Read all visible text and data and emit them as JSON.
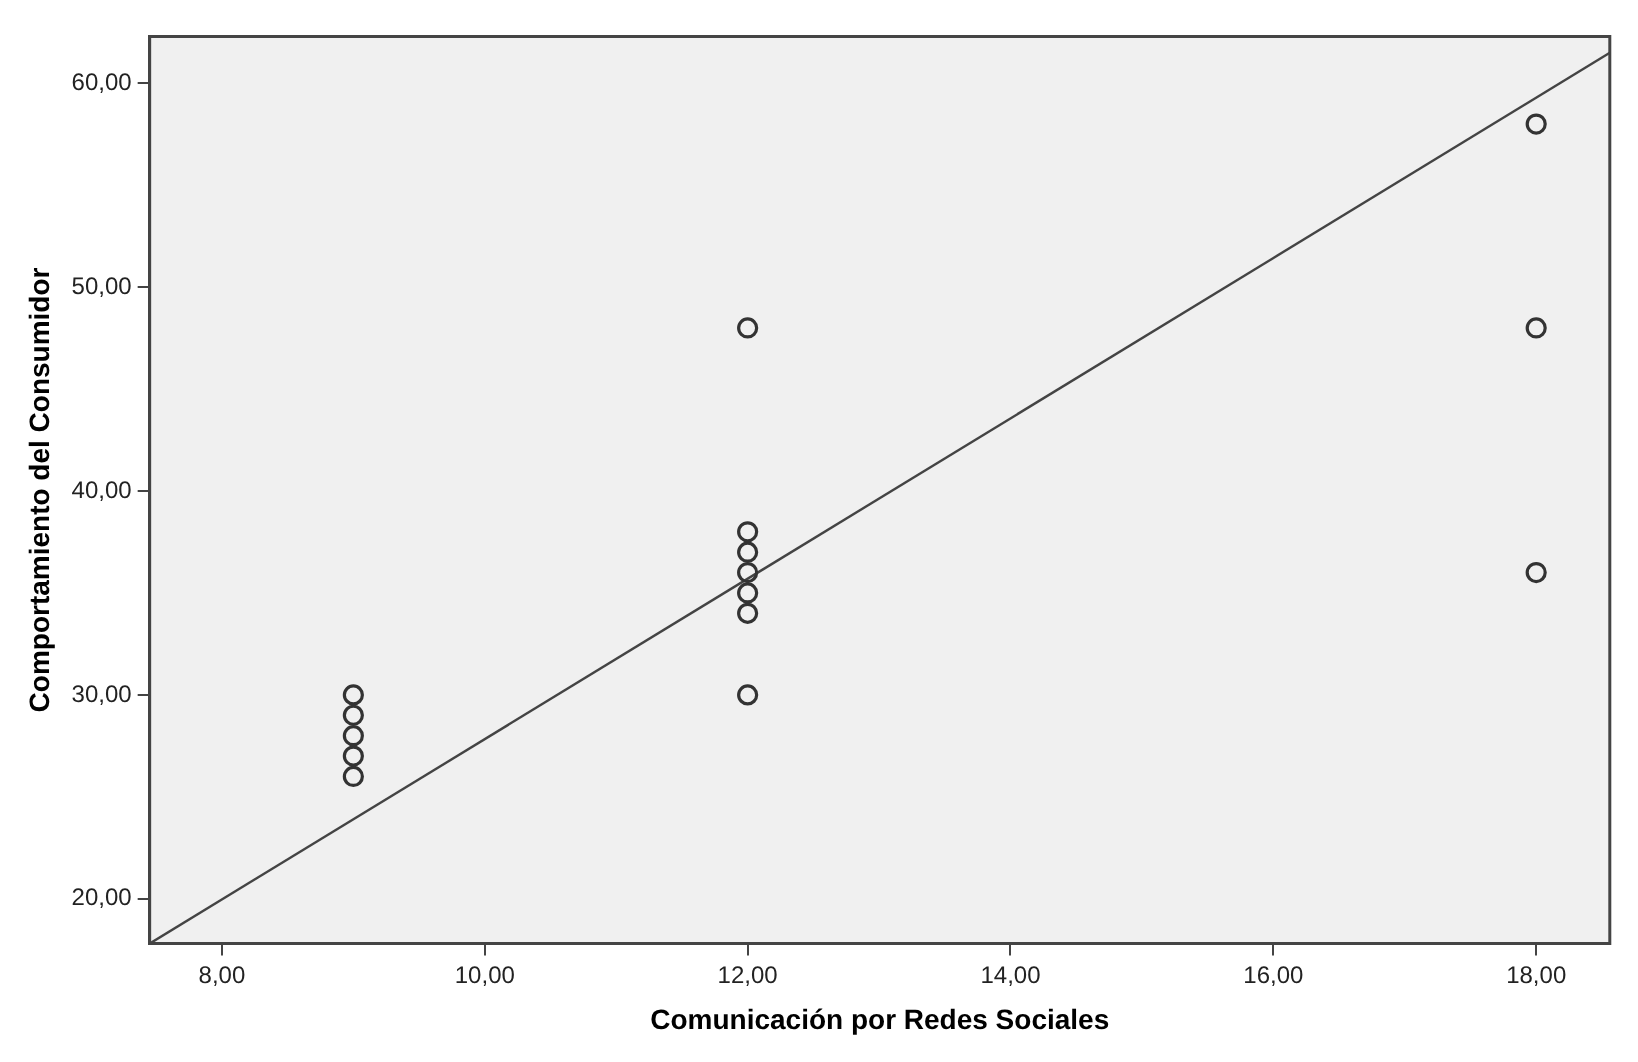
{
  "chart_data": {
    "type": "scatter",
    "xlabel": "Comunicación por Redes Sociales",
    "ylabel": "Comportamiento del Consumidor",
    "series": [
      {
        "color": "#333333",
        "marker": "circle",
        "x": [
          9,
          9,
          9,
          9,
          9,
          12,
          12,
          12,
          12,
          12,
          12,
          12,
          18,
          18,
          18
        ],
        "values": [
          26,
          27,
          28,
          29,
          30,
          30,
          34,
          35,
          36,
          37,
          38,
          48,
          36,
          48,
          58
        ]
      },
      {
        "type": "line",
        "marker": "none",
        "color": "#444444",
        "x": [
          7.45,
          18.56
        ],
        "values": [
          17.8,
          61.5
        ]
      }
    ],
    "xlim": [
      7.45,
      18.56
    ],
    "ylim": [
      17.8,
      62.3
    ],
    "xticks": [
      {
        "value": 8,
        "label": "8,00"
      },
      {
        "value": 10,
        "label": "10,00"
      },
      {
        "value": 12,
        "label": "12,00"
      },
      {
        "value": 14,
        "label": "14,00"
      },
      {
        "value": 16,
        "label": "16,00"
      },
      {
        "value": 18,
        "label": "18,00"
      }
    ],
    "yticks": [
      {
        "value": 20,
        "label": "20,00"
      },
      {
        "value": 30,
        "label": "30,00"
      },
      {
        "value": 40,
        "label": "40,00"
      },
      {
        "value": 50,
        "label": "50,00"
      },
      {
        "value": 60,
        "label": "60,00"
      }
    ],
    "grid": false,
    "legend": false
  }
}
